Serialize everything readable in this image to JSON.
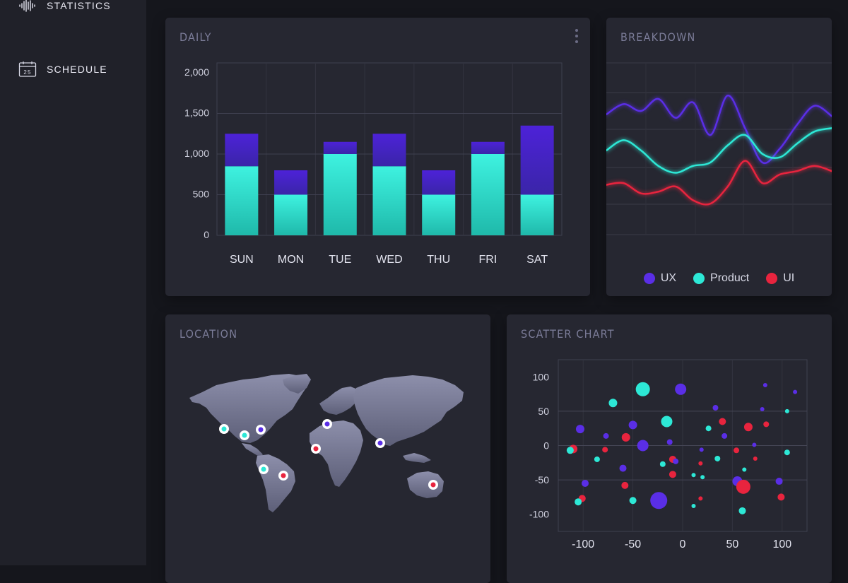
{
  "sidebar": {
    "items": [
      {
        "label": "STATISTICS",
        "icon": "waveform-icon"
      },
      {
        "label": "SCHEDULE",
        "icon": "calendar-icon",
        "icon_text": "25"
      }
    ]
  },
  "daily": {
    "title": "DAILY"
  },
  "breakdown": {
    "title": "BREAKDOWN",
    "legend": [
      {
        "label": "UX",
        "color": "#5a2ee6"
      },
      {
        "label": "Product",
        "color": "#2de8d6"
      },
      {
        "label": "UI",
        "color": "#e8243e"
      }
    ]
  },
  "location": {
    "title": "LOCATION",
    "markers": [
      {
        "color": "#2de8d6"
      },
      {
        "color": "#2de8d6"
      },
      {
        "color": "#5a2ee6"
      },
      {
        "color": "#5a2ee6"
      },
      {
        "color": "#e8243e"
      },
      {
        "color": "#5a2ee6"
      },
      {
        "color": "#2de8d6"
      },
      {
        "color": "#e8243e"
      },
      {
        "color": "#e8243e"
      }
    ]
  },
  "scatter": {
    "title": "SCATTER CHART"
  },
  "colors": {
    "teal": "#2de8d6",
    "purple": "#5a2ee6",
    "red": "#e8243e"
  },
  "chart_data": [
    {
      "type": "bar",
      "stacked": true,
      "categories": [
        "SUN",
        "MON",
        "TUE",
        "WED",
        "THU",
        "FRI",
        "SAT"
      ],
      "y_ticks": [
        "2,000",
        "1,500",
        "1,000",
        "500",
        "0"
      ],
      "ylim": [
        0,
        2000
      ],
      "series": [
        {
          "values": [
            850,
            500,
            1000,
            850,
            500,
            1000,
            500
          ],
          "color": "#2de8d6"
        },
        {
          "values": [
            400,
            300,
            150,
            400,
            300,
            150,
            850
          ],
          "color": "#4a24d4"
        }
      ],
      "grid": true
    },
    {
      "type": "line",
      "x": [
        0,
        1,
        2,
        3,
        4,
        5,
        6,
        7,
        8,
        9,
        10,
        11,
        12,
        13
      ],
      "series": [
        {
          "name": "UX",
          "values": [
            0.7,
            0.76,
            0.72,
            0.79,
            0.68,
            0.77,
            0.58,
            0.81,
            0.62,
            0.42,
            0.5,
            0.64,
            0.75,
            0.69
          ],
          "color": "#5a2ee6"
        },
        {
          "name": "Product",
          "values": [
            0.49,
            0.55,
            0.49,
            0.4,
            0.36,
            0.4,
            0.42,
            0.52,
            0.58,
            0.47,
            0.45,
            0.53,
            0.6,
            0.62
          ],
          "color": "#2de8d6"
        },
        {
          "name": "UI",
          "values": [
            0.29,
            0.3,
            0.24,
            0.25,
            0.28,
            0.2,
            0.18,
            0.28,
            0.43,
            0.3,
            0.35,
            0.37,
            0.4,
            0.37
          ],
          "color": "#e8243e"
        }
      ],
      "legend": "bottom",
      "grid": true
    },
    {
      "type": "scatter",
      "x_ticks": [
        "-100",
        "-50",
        "0",
        "50",
        "100"
      ],
      "y_ticks": [
        "100",
        "50",
        "0",
        "-50",
        "-100"
      ],
      "xlim": [
        -125,
        125
      ],
      "ylim": [
        -125,
        125
      ],
      "grid": true,
      "points": [
        {
          "x": -40,
          "y": 82,
          "r": 10,
          "c": "teal"
        },
        {
          "x": -2,
          "y": 82,
          "r": 8,
          "c": "purple"
        },
        {
          "x": 83,
          "y": 88,
          "r": 3,
          "c": "purple"
        },
        {
          "x": 113,
          "y": 78,
          "r": 3,
          "c": "purple"
        },
        {
          "x": -70,
          "y": 62,
          "r": 6,
          "c": "teal"
        },
        {
          "x": 33,
          "y": 55,
          "r": 4,
          "c": "purple"
        },
        {
          "x": 80,
          "y": 53,
          "r": 3,
          "c": "purple"
        },
        {
          "x": 105,
          "y": 50,
          "r": 3,
          "c": "teal"
        },
        {
          "x": -16,
          "y": 35,
          "r": 8,
          "c": "teal"
        },
        {
          "x": -50,
          "y": 30,
          "r": 6,
          "c": "purple"
        },
        {
          "x": 40,
          "y": 35,
          "r": 5,
          "c": "red"
        },
        {
          "x": 66,
          "y": 27,
          "r": 6,
          "c": "red"
        },
        {
          "x": 84,
          "y": 31,
          "r": 4,
          "c": "red"
        },
        {
          "x": -103,
          "y": 24,
          "r": 6,
          "c": "purple"
        },
        {
          "x": 26,
          "y": 25,
          "r": 4,
          "c": "teal"
        },
        {
          "x": -77,
          "y": 14,
          "r": 4,
          "c": "purple"
        },
        {
          "x": -57,
          "y": 12,
          "r": 6,
          "c": "red"
        },
        {
          "x": 42,
          "y": 14,
          "r": 4,
          "c": "purple"
        },
        {
          "x": -13,
          "y": 5,
          "r": 4,
          "c": "purple"
        },
        {
          "x": -40,
          "y": 0,
          "r": 8,
          "c": "purple"
        },
        {
          "x": 72,
          "y": 1,
          "r": 3,
          "c": "purple"
        },
        {
          "x": -110,
          "y": -5,
          "r": 6,
          "c": "red"
        },
        {
          "x": -113,
          "y": -7,
          "r": 5,
          "c": "teal"
        },
        {
          "x": -78,
          "y": -6,
          "r": 4,
          "c": "red"
        },
        {
          "x": 19,
          "y": -6,
          "r": 3,
          "c": "purple"
        },
        {
          "x": 54,
          "y": -7,
          "r": 4,
          "c": "red"
        },
        {
          "x": 105,
          "y": -10,
          "r": 4,
          "c": "teal"
        },
        {
          "x": -86,
          "y": -20,
          "r": 4,
          "c": "teal"
        },
        {
          "x": -10,
          "y": -20,
          "r": 5,
          "c": "red"
        },
        {
          "x": 35,
          "y": -19,
          "r": 4,
          "c": "teal"
        },
        {
          "x": 73,
          "y": -19,
          "r": 3,
          "c": "red"
        },
        {
          "x": -7,
          "y": -23,
          "r": 4,
          "c": "purple"
        },
        {
          "x": -20,
          "y": -27,
          "r": 4,
          "c": "teal"
        },
        {
          "x": 18,
          "y": -26,
          "r": 3,
          "c": "red"
        },
        {
          "x": -60,
          "y": -33,
          "r": 5,
          "c": "purple"
        },
        {
          "x": 62,
          "y": -35,
          "r": 3,
          "c": "teal"
        },
        {
          "x": -10,
          "y": -42,
          "r": 5,
          "c": "red"
        },
        {
          "x": 11,
          "y": -43,
          "r": 3,
          "c": "teal"
        },
        {
          "x": 20,
          "y": -46,
          "r": 3,
          "c": "teal"
        },
        {
          "x": 55,
          "y": -52,
          "r": 7,
          "c": "purple"
        },
        {
          "x": 61,
          "y": -60,
          "r": 10,
          "c": "red"
        },
        {
          "x": 97,
          "y": -52,
          "r": 5,
          "c": "purple"
        },
        {
          "x": -98,
          "y": -55,
          "r": 5,
          "c": "purple"
        },
        {
          "x": -58,
          "y": -58,
          "r": 5,
          "c": "red"
        },
        {
          "x": -101,
          "y": -77,
          "r": 5,
          "c": "red"
        },
        {
          "x": -105,
          "y": -82,
          "r": 5,
          "c": "teal"
        },
        {
          "x": -50,
          "y": -80,
          "r": 5,
          "c": "teal"
        },
        {
          "x": -24,
          "y": -80,
          "r": 12,
          "c": "purple"
        },
        {
          "x": 18,
          "y": -77,
          "r": 3,
          "c": "red"
        },
        {
          "x": 11,
          "y": -88,
          "r": 3,
          "c": "teal"
        },
        {
          "x": 60,
          "y": -95,
          "r": 5,
          "c": "teal"
        },
        {
          "x": 99,
          "y": -75,
          "r": 5,
          "c": "red"
        }
      ]
    }
  ]
}
